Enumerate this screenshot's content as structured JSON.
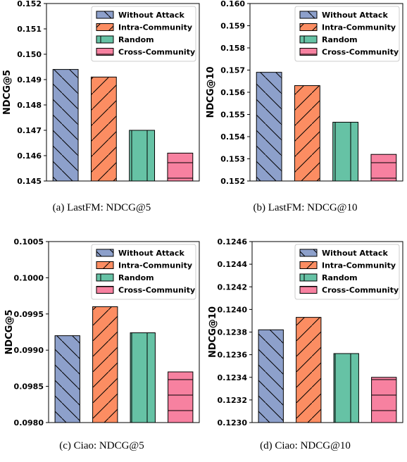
{
  "legend": [
    "Without Attack",
    "Intra-Community",
    "Random",
    "Cross-Community"
  ],
  "colors": {
    "Without Attack": "#8da0cb",
    "Intra-Community": "#fc8d62",
    "Random": "#66c2a5",
    "Cross-Community": "#f781a0"
  },
  "hatches": {
    "Without Attack": "backslash",
    "Intra-Community": "slash",
    "Random": "vertical",
    "Cross-Community": "horizontal"
  },
  "chart_data": [
    {
      "type": "bar",
      "caption": "(a)  LastFM:  NDCG@5",
      "ylabel": "NDCG@5",
      "categories": [
        "Without Attack",
        "Intra-Community",
        "Random",
        "Cross-Community"
      ],
      "values": [
        0.1494,
        0.1491,
        0.147,
        0.1461
      ],
      "ylim": [
        0.145,
        0.152
      ],
      "yticks": [
        "0.145",
        "0.146",
        "0.147",
        "0.148",
        "0.149",
        "0.150",
        "0.151",
        "0.152"
      ],
      "legend_position": "top-right",
      "grid": false
    },
    {
      "type": "bar",
      "caption": "(b)  LastFM:  NDCG@10",
      "ylabel": "NDCG@10",
      "categories": [
        "Without Attack",
        "Intra-Community",
        "Random",
        "Cross-Community"
      ],
      "values": [
        0.1569,
        0.1563,
        0.15465,
        0.1532
      ],
      "ylim": [
        0.152,
        0.16
      ],
      "yticks": [
        "0.152",
        "0.153",
        "0.154",
        "0.155",
        "0.156",
        "0.157",
        "0.158",
        "0.159",
        "0.160"
      ],
      "legend_position": "top-right",
      "grid": false
    },
    {
      "type": "bar",
      "caption": "(c)  Ciao:  NDCG@5",
      "ylabel": "NDCG@5",
      "categories": [
        "Without Attack",
        "Intra-Community",
        "Random",
        "Cross-Community"
      ],
      "values": [
        0.0992,
        0.0996,
        0.09924,
        0.0987
      ],
      "ylim": [
        0.098,
        0.1005
      ],
      "yticks": [
        "0.0980",
        "0.0985",
        "0.0990",
        "0.0995",
        "0.1000",
        "0.1005"
      ],
      "legend_position": "top-right",
      "grid": false
    },
    {
      "type": "bar",
      "caption": "(d)  Ciao:  NDCG@10",
      "ylabel": "NDCG@10",
      "categories": [
        "Without Attack",
        "Intra-Community",
        "Random",
        "Cross-Community"
      ],
      "values": [
        0.12382,
        0.12393,
        0.12361,
        0.1234
      ],
      "ylim": [
        0.123,
        0.1246
      ],
      "yticks": [
        "0.1230",
        "0.1232",
        "0.1234",
        "0.1236",
        "0.1238",
        "0.1240",
        "0.1242",
        "0.1244",
        "0.1246"
      ],
      "legend_position": "top-right",
      "grid": false
    }
  ]
}
